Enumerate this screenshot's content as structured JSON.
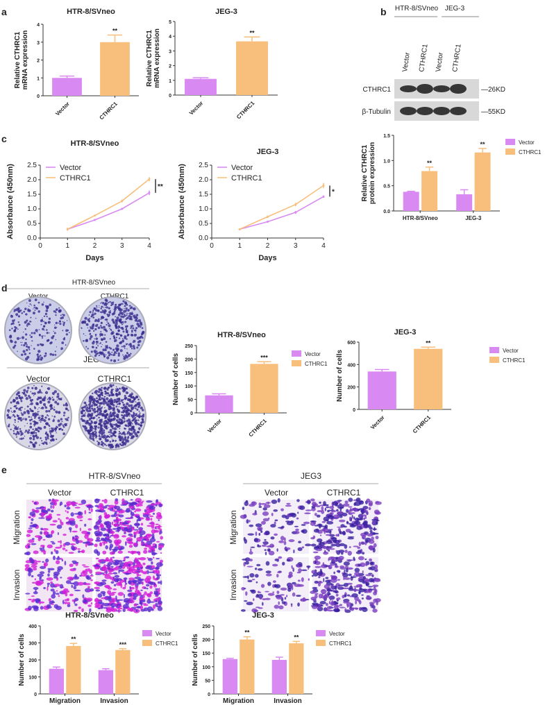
{
  "panel_labels": {
    "a": "a",
    "b": "b",
    "c": "c",
    "d": "d",
    "e": "e"
  },
  "colors": {
    "vector": "#d98af2",
    "cthrc1": "#f8bf7c",
    "axis": "#333333"
  },
  "blot": {
    "groups": [
      "HTR-8/SVneo",
      "JEG-3"
    ],
    "lanes": [
      "Vector",
      "CTHRC1",
      "Vector",
      "CTHRC1"
    ],
    "rows": [
      "CTHRC1",
      "β-Tubulin"
    ],
    "markers": [
      "—26KD",
      "—55KD"
    ]
  },
  "colony": {
    "top_title": "HTR-8/SVneo",
    "bottom_title": "JEG3",
    "columns": [
      "Vector",
      "CTHRC1"
    ]
  },
  "transwell": {
    "left_title": "HTR-8/SVneo",
    "right_title": "JEG3",
    "columns": [
      "Vector",
      "CTHRC1"
    ],
    "rows": [
      "Migration",
      "Invasion"
    ]
  },
  "chart_data": [
    {
      "type": "bar",
      "title": "HTR-8/SVneo",
      "ylabel": [
        "Relative CTHRC1",
        "mRNA expression"
      ],
      "categories": [
        "Vector",
        "CTHRC1"
      ],
      "series": [
        {
          "name": "mean",
          "values": [
            1.0,
            3.0
          ],
          "errors": [
            0.1,
            0.4
          ]
        }
      ],
      "bar_colors": [
        "#d98af2",
        "#f8bf7c"
      ],
      "significance": [
        "",
        "**"
      ],
      "ylim": [
        0,
        4
      ],
      "yticks": [
        "0",
        "1",
        "2",
        "3",
        "4"
      ]
    },
    {
      "type": "bar",
      "title": "JEG-3",
      "ylabel": [
        "Relative CTHRC1",
        "mRNA expression"
      ],
      "categories": [
        "Vector",
        "CTHRC1"
      ],
      "series": [
        {
          "name": "mean",
          "values": [
            1.1,
            3.65
          ],
          "errors": [
            0.08,
            0.3
          ]
        }
      ],
      "bar_colors": [
        "#d98af2",
        "#f8bf7c"
      ],
      "significance": [
        "",
        "**"
      ],
      "ylim": [
        0,
        5
      ],
      "yticks": [
        "0",
        "1",
        "2",
        "3",
        "4",
        "5"
      ]
    },
    {
      "type": "line",
      "title": "HTR-8/SVneo",
      "xlabel": "Days",
      "ylabel": [
        "Absorbance (450nm)"
      ],
      "x": [
        1,
        2,
        3,
        4
      ],
      "xlim": [
        0,
        4
      ],
      "xticks": [
        "0",
        "1",
        "2",
        "3",
        "4"
      ],
      "ylim": [
        0,
        2.5
      ],
      "yticks": [
        "0.0",
        "0.5",
        "1.0",
        "1.5",
        "2.0",
        "2.5"
      ],
      "series": [
        {
          "name": "Vector",
          "values": [
            0.3,
            0.62,
            1.0,
            1.55
          ],
          "errors": [
            0.05,
            0.03,
            0.03,
            0.08
          ],
          "color": "#d98af2"
        },
        {
          "name": "CTHRC1",
          "values": [
            0.3,
            0.77,
            1.27,
            2.02
          ],
          "errors": [
            0.05,
            0.03,
            0.05,
            0.07
          ],
          "color": "#f8bf7c"
        }
      ],
      "significance": "**"
    },
    {
      "type": "line",
      "title": "JEG-3",
      "xlabel": "Days",
      "ylabel": [
        "Absorbance (450nm)"
      ],
      "x": [
        1,
        2,
        3,
        4
      ],
      "xlim": [
        0,
        4
      ],
      "xticks": [
        "0",
        "1",
        "2",
        "3",
        "4"
      ],
      "ylim": [
        0,
        2.5
      ],
      "yticks": [
        "0.0",
        "0.5",
        "1.0",
        "1.5",
        "2.0",
        "2.5"
      ],
      "series": [
        {
          "name": "Vector",
          "values": [
            0.3,
            0.56,
            0.88,
            1.42
          ],
          "errors": [
            0.03,
            0.03,
            0.05,
            0.04
          ],
          "color": "#d98af2"
        },
        {
          "name": "CTHRC1",
          "values": [
            0.3,
            0.73,
            1.15,
            1.8
          ],
          "errors": [
            0.03,
            0.04,
            0.06,
            0.09
          ],
          "color": "#f8bf7c"
        }
      ],
      "significance": "*"
    },
    {
      "type": "bar",
      "title": "",
      "ylabel": [
        "Relative CTHRC1",
        "protein expression"
      ],
      "categories": [
        "HTR-8/SVneo",
        "JEG-3"
      ],
      "series": [
        {
          "name": "Vector",
          "values": [
            0.38,
            0.33
          ],
          "errors": [
            0.01,
            0.09
          ],
          "color": "#d98af2"
        },
        {
          "name": "CTHRC1",
          "values": [
            0.79,
            1.16
          ],
          "errors": [
            0.08,
            0.08
          ],
          "color": "#f8bf7c"
        }
      ],
      "significance": [
        "**",
        "**"
      ],
      "legend": [
        "Vector",
        "CTHRC1"
      ],
      "ylim": [
        0,
        1.5
      ],
      "yticks": [
        "0.0",
        "0.5",
        "1.0",
        "1.5"
      ]
    },
    {
      "type": "bar",
      "title": "HTR-8/SVneo",
      "ylabel": [
        "Number of cells"
      ],
      "categories": [
        "Vector",
        "CTHRC1"
      ],
      "series": [
        {
          "name": "mean",
          "values": [
            65,
            182
          ],
          "errors": [
            6,
            8
          ]
        }
      ],
      "bar_colors": [
        "#d98af2",
        "#f8bf7c"
      ],
      "significance": [
        "",
        "***"
      ],
      "legend": [
        "Vector",
        "CTHRC1"
      ],
      "ylim": [
        0,
        250
      ],
      "yticks": [
        "0",
        "50",
        "100",
        "150",
        "200",
        "250"
      ]
    },
    {
      "type": "bar",
      "title": "JEG-3",
      "ylabel": [
        "Number of cells"
      ],
      "categories": [
        "Vector",
        "CTHRC1"
      ],
      "series": [
        {
          "name": "mean",
          "values": [
            338,
            540
          ],
          "errors": [
            18,
            15
          ]
        }
      ],
      "bar_colors": [
        "#d98af2",
        "#f8bf7c"
      ],
      "significance": [
        "",
        "**"
      ],
      "legend": [
        "Vector",
        "CTHRC1"
      ],
      "ylim": [
        0,
        600
      ],
      "yticks": [
        "0",
        "200",
        "400",
        "600"
      ]
    },
    {
      "type": "bar",
      "title": "HTR-8/SVneo",
      "ylabel": [
        "Number of cells"
      ],
      "categories": [
        "Migration",
        "Invasion"
      ],
      "series": [
        {
          "name": "Vector",
          "values": [
            148,
            140
          ],
          "errors": [
            10,
            8
          ],
          "color": "#d98af2"
        },
        {
          "name": "CTHRC1",
          "values": [
            282,
            258
          ],
          "errors": [
            15,
            8
          ],
          "color": "#f8bf7c"
        }
      ],
      "significance": [
        "**",
        "***"
      ],
      "legend": [
        "Vector",
        "CTHRC1"
      ],
      "ylim": [
        0,
        400
      ],
      "yticks": [
        "0",
        "100",
        "200",
        "300",
        "400"
      ]
    },
    {
      "type": "bar",
      "title": "JEG-3",
      "ylabel": [
        "Number of cells"
      ],
      "categories": [
        "Migration",
        "Invasion"
      ],
      "series": [
        {
          "name": "Vector",
          "values": [
            128,
            125
          ],
          "errors": [
            3,
            10
          ],
          "color": "#d98af2"
        },
        {
          "name": "CTHRC1",
          "values": [
            200,
            186
          ],
          "errors": [
            10,
            7
          ],
          "color": "#f8bf7c"
        }
      ],
      "significance": [
        "**",
        "**"
      ],
      "legend": [
        "Vector",
        "CTHRC1"
      ],
      "ylim": [
        0,
        250
      ],
      "yticks": [
        "0",
        "50",
        "100",
        "150",
        "200",
        "250"
      ]
    }
  ]
}
